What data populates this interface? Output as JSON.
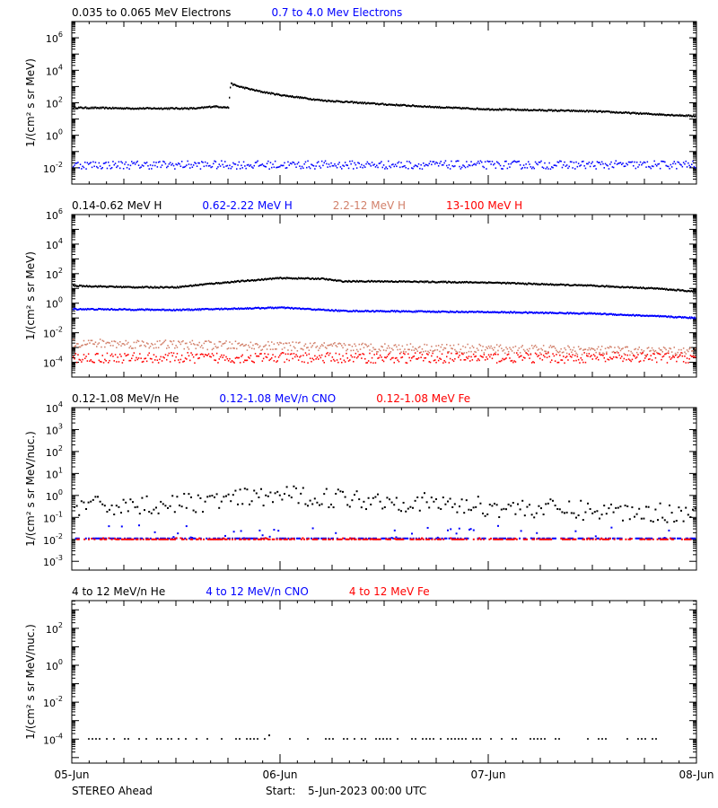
{
  "footer": {
    "spacecraft": "STEREO Ahead",
    "start_label": "Start:",
    "start_value": "5-Jun-2023 00:00 UTC"
  },
  "x_tick_labels": [
    "05-Jun",
    "06-Jun",
    "07-Jun",
    "08-Jun"
  ],
  "chart_data": [
    {
      "type": "scatter",
      "ylabel": "1/(cm² s sr MeV)",
      "yscale": "log",
      "ylim_exp": [
        -3,
        7
      ],
      "ytick_exps": [
        -2,
        0,
        2,
        4,
        6
      ],
      "legend": [
        {
          "name": "0.035 to 0.065 MeV Electrons",
          "color": "#000000"
        },
        {
          "name": "0.7 to 4.0 Mev Electrons",
          "color": "#0000ff"
        }
      ],
      "series": [
        {
          "name": "0.035 to 0.065 MeV Electrons",
          "color": "#000000",
          "style": "dense",
          "x": [
            0,
            0.3,
            0.6,
            0.68,
            0.72,
            0.75,
            0.76,
            0.8,
            0.9,
            1.0,
            1.2,
            1.5,
            1.8,
            2.0,
            2.5,
            3.0
          ],
          "y": [
            50,
            45,
            45,
            60,
            55,
            50,
            1500,
            1000,
            500,
            300,
            140,
            80,
            50,
            40,
            30,
            15
          ]
        },
        {
          "name": "0.7 to 4.0 Mev Electrons",
          "color": "#0000ff",
          "style": "noisy",
          "spread": 0.25,
          "x": [
            0,
            3
          ],
          "y": [
            0.015,
            0.015
          ]
        }
      ]
    },
    {
      "type": "scatter",
      "ylabel": "1/(cm² s sr MeV)",
      "yscale": "log",
      "ylim_exp": [
        -5,
        6
      ],
      "ytick_exps": [
        -4,
        -2,
        0,
        2,
        4,
        6
      ],
      "legend": [
        {
          "name": "0.14-0.62 MeV H",
          "color": "#000000"
        },
        {
          "name": "0.62-2.22 MeV H",
          "color": "#0000ff"
        },
        {
          "name": "2.2-12 MeV H",
          "color": "#d2806a"
        },
        {
          "name": "13-100 MeV H",
          "color": "#ff0000"
        }
      ],
      "series": [
        {
          "name": "0.14-0.62 MeV H",
          "color": "#000000",
          "style": "dense",
          "x": [
            0,
            0.3,
            0.5,
            0.65,
            0.8,
            1.0,
            1.2,
            1.3,
            1.5,
            2.0,
            2.5,
            2.8,
            3.0
          ],
          "y": [
            15,
            12,
            12,
            20,
            30,
            50,
            45,
            30,
            30,
            25,
            15,
            10,
            6
          ]
        },
        {
          "name": "0.62-2.22 MeV H",
          "color": "#0000ff",
          "style": "dense",
          "x": [
            0,
            0.5,
            1.0,
            1.3,
            2.0,
            2.5,
            3.0
          ],
          "y": [
            0.4,
            0.35,
            0.5,
            0.3,
            0.25,
            0.2,
            0.1
          ]
        },
        {
          "name": "2.2-12 MeV H",
          "color": "#d2806a",
          "style": "noisy",
          "spread": 0.3,
          "x": [
            0,
            1.0,
            2.0,
            3.0
          ],
          "y": [
            0.002,
            0.0012,
            0.0008,
            0.0005
          ]
        },
        {
          "name": "13-100 MeV H",
          "color": "#ff0000",
          "style": "noisy",
          "spread": 0.35,
          "x": [
            0,
            3
          ],
          "y": [
            0.0002,
            0.0002
          ]
        }
      ]
    },
    {
      "type": "scatter",
      "ylabel": "1/(cm² s sr MeV/nuc.)",
      "yscale": "log",
      "ylim_exp": [
        -3.4,
        4
      ],
      "ytick_exps": [
        -3,
        -2,
        -1,
        0,
        1,
        2,
        3,
        4
      ],
      "legend": [
        {
          "name": "0.12-1.08 MeV/n He",
          "color": "#000000"
        },
        {
          "name": "0.12-1.08 MeV/n CNO",
          "color": "#0000ff"
        },
        {
          "name": "0.12-1.08 MeV Fe",
          "color": "#ff0000"
        }
      ],
      "series": [
        {
          "name": "0.12-1.08 MeV/n He",
          "color": "#000000",
          "style": "scatter",
          "spread": 0.45,
          "x": [
            0,
            0.5,
            1.0,
            1.5,
            2.0,
            2.5,
            3.0
          ],
          "y": [
            0.3,
            0.4,
            1.0,
            0.6,
            0.3,
            0.2,
            0.15
          ]
        },
        {
          "name": "0.12-1.08 MeV/n CNO",
          "color": "#0000ff",
          "style": "floor",
          "spread": 0.2,
          "x": [
            0,
            3
          ],
          "y": [
            0.011,
            0.011
          ]
        },
        {
          "name": "0.12-1.08 MeV Fe",
          "color": "#ff0000",
          "style": "floor",
          "spread": 0.02,
          "x": [
            0,
            3
          ],
          "y": [
            0.01,
            0.01
          ]
        }
      ]
    },
    {
      "type": "scatter",
      "ylabel": "1/(cm² s sr MeV/nuc.)",
      "yscale": "log",
      "ylim_exp": [
        -5.3,
        3.5
      ],
      "ytick_exps": [
        -4,
        -2,
        0,
        2
      ],
      "legend": [
        {
          "name": "4 to 12 MeV/n He",
          "color": "#000000"
        },
        {
          "name": "4 to 12 MeV/n CNO",
          "color": "#0000ff"
        },
        {
          "name": "4 to 12 MeV Fe",
          "color": "#ff0000"
        }
      ],
      "series": [
        {
          "name": "4 to 12 MeV/n He",
          "color": "#000000",
          "style": "sparse",
          "x": [
            0,
            3
          ],
          "y": [
            0.0001,
            0.0001
          ]
        }
      ]
    }
  ]
}
